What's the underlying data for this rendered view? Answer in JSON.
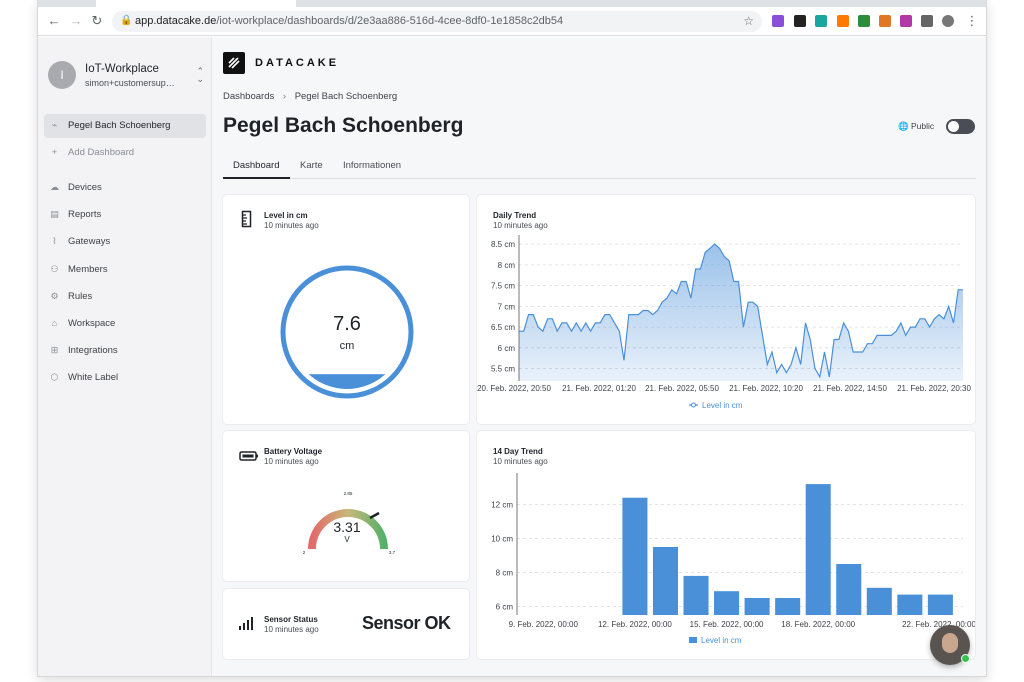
{
  "browser": {
    "tab_title": "Pegel Bach Schoenberg",
    "url_host": "app.datacake.de",
    "url_path": "/iot-workplace/dashboards/d/2e3aa886-516d-4cee-8df0-1e1858c2db54"
  },
  "sidebar": {
    "workspace": {
      "initial": "I",
      "name": "IoT-Workplace",
      "user": "simon+customersup…"
    },
    "dashboards": [
      {
        "label": "Pegel Bach Schoenberg",
        "icon": "chart-line-icon"
      },
      {
        "label": "Add Dashboard",
        "icon": "plus-icon"
      }
    ],
    "items": [
      {
        "label": "Devices",
        "icon": "cloud-icon"
      },
      {
        "label": "Reports",
        "icon": "document-icon"
      },
      {
        "label": "Gateways",
        "icon": "antenna-icon"
      },
      {
        "label": "Members",
        "icon": "users-icon"
      },
      {
        "label": "Rules",
        "icon": "rules-icon"
      },
      {
        "label": "Workspace",
        "icon": "home-icon"
      },
      {
        "label": "Integrations",
        "icon": "integrations-icon"
      },
      {
        "label": "White Label",
        "icon": "tag-icon"
      }
    ]
  },
  "header": {
    "logo_text": "DATACAKE",
    "breadcrumbs": [
      "Dashboards",
      "Pegel Bach Schoenberg"
    ],
    "title": "Pegel Bach Schoenberg",
    "public_label": "Public",
    "tabs": [
      "Dashboard",
      "Karte",
      "Informationen"
    ]
  },
  "widgets": {
    "level": {
      "title": "Level in cm",
      "updated": "10 minutes ago",
      "value": "7.6",
      "unit": "cm",
      "fill_fraction": 0.13
    },
    "battery": {
      "title": "Battery Voltage",
      "updated": "10 minutes ago",
      "value": "3.31",
      "unit": "V",
      "min": "2",
      "max": "3.7",
      "mark": "2.85"
    },
    "sensor": {
      "title": "Sensor Status",
      "updated": "10 minutes ago",
      "status": "Sensor OK"
    },
    "daily": {
      "title": "Daily Trend",
      "updated": "10 minutes ago"
    },
    "fourteen": {
      "title": "14 Day Trend",
      "updated": "10 minutes ago"
    }
  },
  "chart_data": [
    {
      "type": "area",
      "title": "Daily Trend",
      "ylim": [
        5.2,
        8.6
      ],
      "y_ticks": [
        "5.5 cm",
        "6 cm",
        "6.5 cm",
        "7 cm",
        "7.5 cm",
        "8 cm",
        "8.5 cm"
      ],
      "y_tick_values": [
        5.5,
        6,
        6.5,
        7,
        7.5,
        8,
        8.5
      ],
      "x_ticks": [
        "20. Feb. 2022, 20:50",
        "21. Feb. 2022, 01:20",
        "21. Feb. 2022, 05:50",
        "21. Feb. 2022, 10:20",
        "21. Feb. 2022, 14:50",
        "21. Feb. 2022, 20:30"
      ],
      "legend": "Level in cm",
      "color": "#4a90d9",
      "values": [
        6.4,
        6.4,
        6.8,
        6.8,
        6.5,
        6.4,
        6.7,
        6.7,
        6.4,
        6.6,
        6.6,
        6.4,
        6.6,
        6.4,
        6.6,
        6.4,
        6.6,
        6.6,
        6.8,
        6.8,
        6.6,
        6.4,
        5.7,
        6.8,
        6.8,
        6.8,
        6.9,
        6.9,
        6.8,
        6.9,
        7.1,
        7.2,
        7.4,
        7.3,
        7.6,
        7.6,
        7.2,
        7.9,
        7.9,
        8.3,
        8.4,
        8.5,
        8.4,
        8.2,
        8.1,
        7.6,
        7.6,
        6.5,
        7.1,
        7.1,
        7.0,
        6.3,
        5.6,
        5.9,
        5.4,
        5.6,
        5.4,
        5.6,
        6.0,
        5.6,
        6.6,
        6.2,
        5.5,
        5.3,
        5.9,
        5.3,
        6.2,
        6.2,
        6.6,
        6.4,
        5.9,
        5.9,
        5.9,
        6.1,
        6.1,
        6.3,
        6.3,
        6.3,
        6.3,
        6.4,
        6.6,
        6.3,
        6.5,
        6.5,
        6.7,
        6.7,
        6.5,
        6.7,
        6.8,
        6.7,
        7.0,
        6.6,
        7.4,
        7.4
      ]
    },
    {
      "type": "bar",
      "title": "14 Day Trend",
      "ylim": [
        5.5,
        13.5
      ],
      "y_ticks": [
        "6 cm",
        "8 cm",
        "10 cm",
        "12 cm"
      ],
      "y_tick_values": [
        6,
        8,
        10,
        12
      ],
      "x_ticks": [
        "9. Feb. 2022, 00:00",
        "12. Feb. 2022, 00:00",
        "15. Feb. 2022, 00:00",
        "18. Feb. 2022, 00:00",
        "22. Feb. 2022, 00:00"
      ],
      "x_tick_index": [
        0,
        3,
        6,
        9,
        13
      ],
      "legend": "Level in cm",
      "color": "#4a90d9",
      "values": [
        null,
        null,
        null,
        12.4,
        9.5,
        7.8,
        6.9,
        6.5,
        6.5,
        13.2,
        8.5,
        7.1,
        6.7,
        6.7
      ]
    }
  ]
}
